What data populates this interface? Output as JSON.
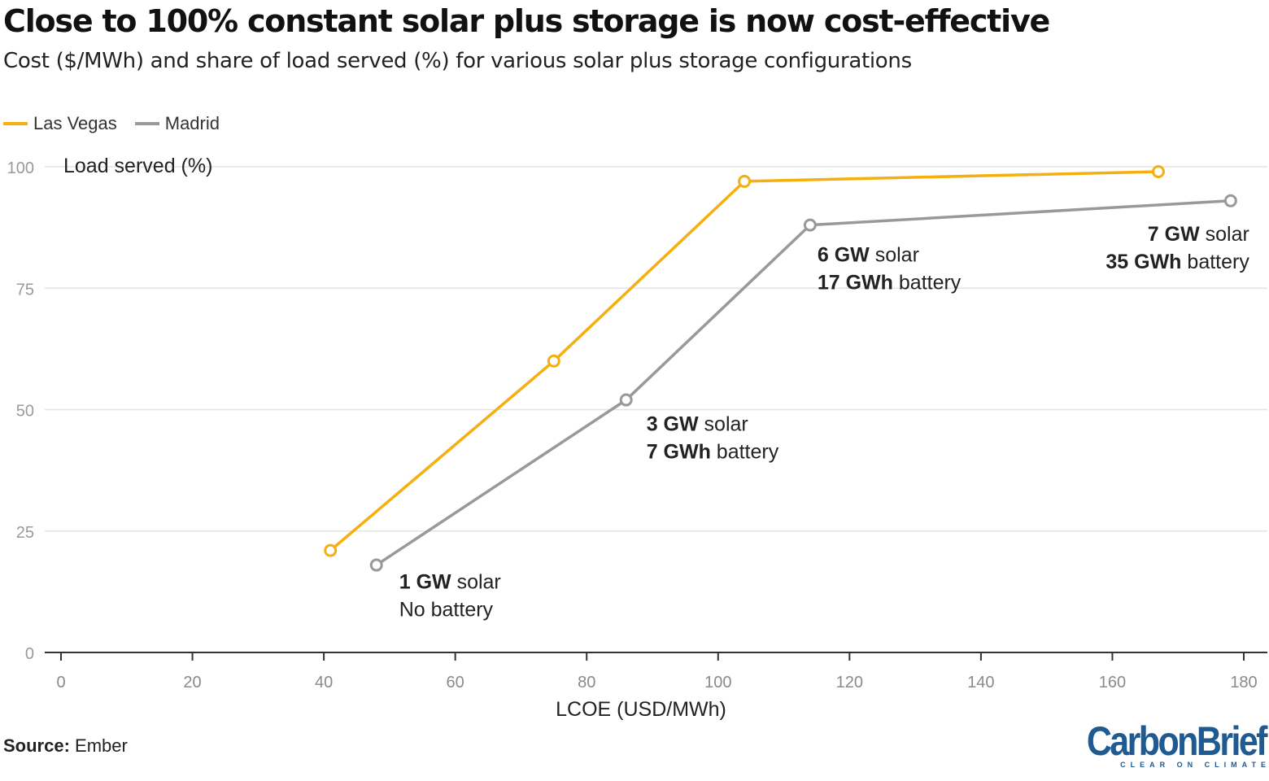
{
  "title": "Close to 100% constant solar plus storage is now cost-effective",
  "subtitle": "Cost ($/MWh) and share of load served (%) for various solar plus storage configurations",
  "source_label": "Source:",
  "source_value": "Ember",
  "logo": {
    "main": "CarbonBrief",
    "tagline": "CLEAR ON CLIMATE"
  },
  "colors": {
    "las_vegas": "#f5b00f",
    "madrid": "#999999",
    "grid": "#e4e4e4",
    "axis": "#333333"
  },
  "chart_data": {
    "type": "line",
    "title": "Close to 100% constant solar plus storage is now cost-effective",
    "xlabel": "LCOE (USD/MWh)",
    "ylabel": "Load served (%)",
    "xlim": [
      0,
      180
    ],
    "ylim": [
      0,
      100
    ],
    "xticks": [
      0,
      20,
      40,
      60,
      80,
      100,
      120,
      140,
      160,
      180
    ],
    "yticks": [
      0,
      25,
      50,
      75,
      100
    ],
    "grid": true,
    "legend_position": "top-left",
    "series": [
      {
        "name": "Las Vegas",
        "color": "#f5b00f",
        "x": [
          41,
          75,
          104,
          167
        ],
        "y": [
          21,
          60,
          97,
          99
        ]
      },
      {
        "name": "Madrid",
        "color": "#999999",
        "x": [
          48,
          86,
          114,
          178
        ],
        "y": [
          18,
          52,
          88,
          93
        ]
      }
    ],
    "annotations": [
      {
        "x": 48,
        "y": 18,
        "bold1": "1 GW",
        "rest1": " solar",
        "bold2": "",
        "rest2": "No battery"
      },
      {
        "x": 86,
        "y": 52,
        "bold1": "3 GW",
        "rest1": " solar",
        "bold2": "7 GWh",
        "rest2": " battery"
      },
      {
        "x": 114,
        "y": 88,
        "bold1": "6 GW",
        "rest1": " solar",
        "bold2": "17 GWh",
        "rest2": " battery"
      },
      {
        "x": 178,
        "y": 93,
        "bold1": "7 GW",
        "rest1": " solar",
        "bold2": "35 GWh",
        "rest2": " battery"
      }
    ]
  }
}
